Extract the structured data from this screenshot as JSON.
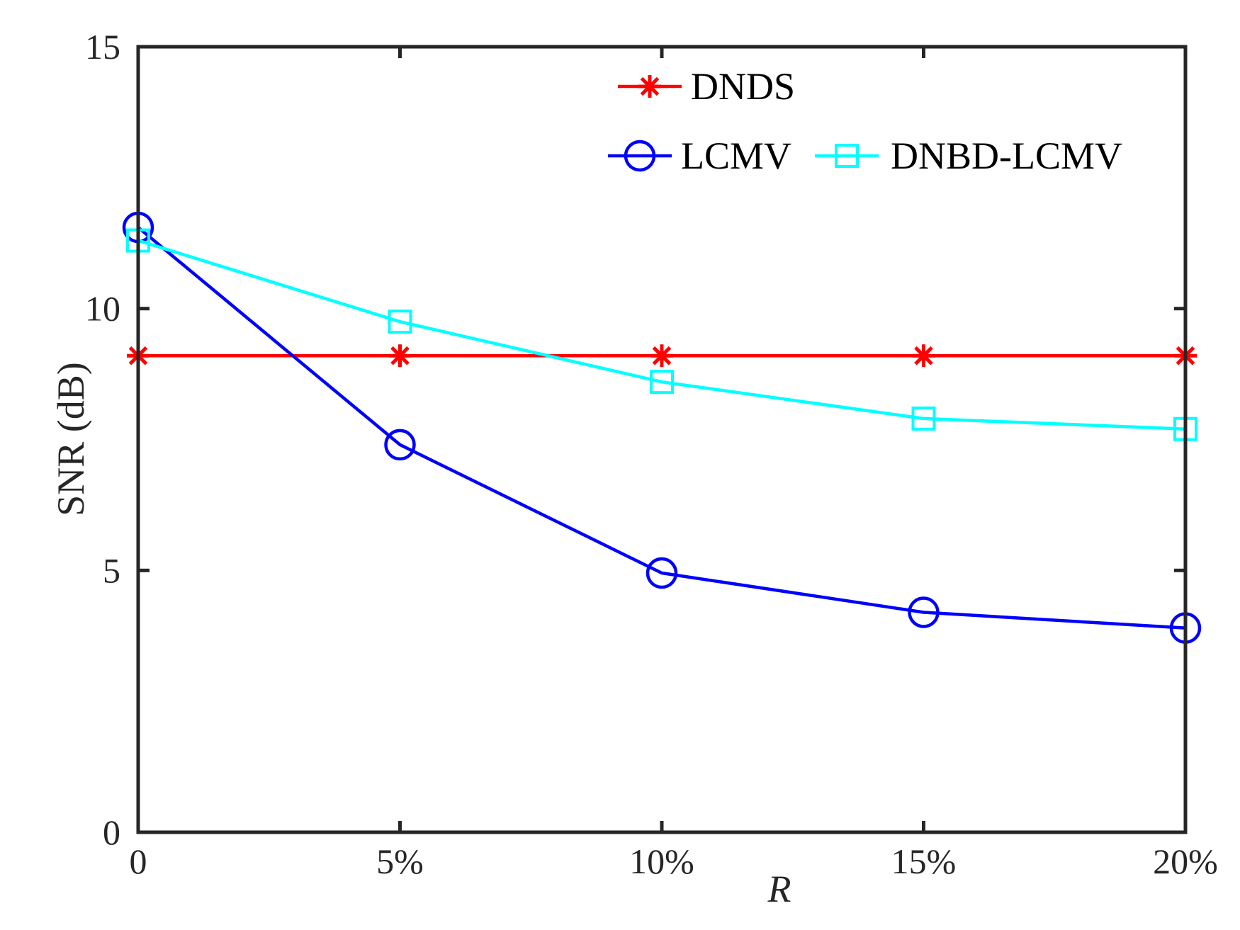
{
  "chart_data": {
    "type": "line",
    "title": "",
    "xlabel": "R",
    "ylabel": "SNR (dB)",
    "categories": [
      "0",
      "5%",
      "10%",
      "15%",
      "20%"
    ],
    "x": [
      0,
      5,
      10,
      15,
      20
    ],
    "xlim": [
      0,
      20
    ],
    "ylim": [
      0,
      15
    ],
    "yticks": [
      0,
      5,
      10,
      15
    ],
    "grid": false,
    "legend_position": "top-right",
    "series": [
      {
        "name": "DNDS",
        "color": "#ff0000",
        "marker": "asterisk",
        "values": [
          9.1,
          9.1,
          9.1,
          9.1,
          9.1
        ]
      },
      {
        "name": "LCMV",
        "color": "#0000ff",
        "marker": "circle",
        "values": [
          11.55,
          7.4,
          4.95,
          4.2,
          3.9
        ]
      },
      {
        "name": "DNBD-LCMV",
        "color": "#00ffff",
        "marker": "square",
        "values": [
          11.3,
          9.75,
          8.6,
          7.9,
          7.7
        ]
      }
    ]
  }
}
